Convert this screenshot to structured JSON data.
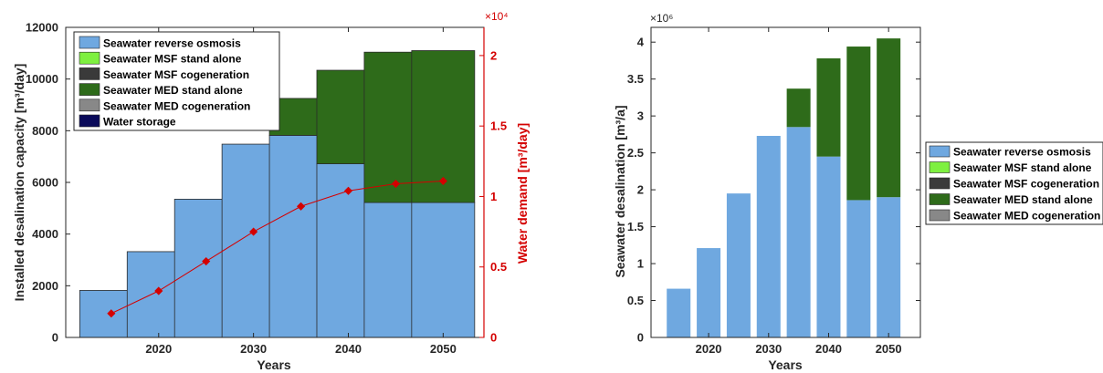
{
  "chart_data": [
    {
      "type": "bar",
      "stacked": true,
      "categories": [
        2015,
        2020,
        2025,
        2030,
        2035,
        2040,
        2045,
        2050
      ],
      "xticks": [
        "2020",
        "2030",
        "2040",
        "2050"
      ],
      "xlabel": "Years",
      "ylabel": "Installed desalination capacity [m³/day]",
      "ylim": [
        0,
        12000
      ],
      "yticks": [
        "0",
        "2000",
        "4000",
        "6000",
        "8000",
        "10000",
        "12000"
      ],
      "y2label": "Water demand [m³/day]",
      "y2lim": [
        0,
        2.2
      ],
      "y2ticks": [
        "0",
        "0.5",
        "1",
        "1.5",
        "2"
      ],
      "y2exponent": "×10⁴",
      "grid": false,
      "legend_position": "top-left",
      "series": [
        {
          "name": "Seawater reverse osmosis",
          "color": "#6fa8e0",
          "values": [
            1820,
            3320,
            5350,
            7480,
            7820,
            6720,
            5220,
            5220
          ]
        },
        {
          "name": "Seawater MSF stand alone",
          "color": "#7ef040",
          "values": [
            0,
            0,
            0,
            0,
            0,
            0,
            0,
            0
          ]
        },
        {
          "name": "Seawater MSF cogeneration",
          "color": "#3a3a3a",
          "values": [
            0,
            0,
            0,
            0,
            0,
            0,
            0,
            0
          ]
        },
        {
          "name": "Seawater MED stand alone",
          "color": "#2e6b1a",
          "values": [
            0,
            0,
            0,
            0,
            1430,
            3620,
            5820,
            5880
          ]
        },
        {
          "name": "Seawater MED cogeneration",
          "color": "#888888",
          "values": [
            0,
            0,
            0,
            0,
            0,
            0,
            0,
            0
          ]
        },
        {
          "name": "Water storage",
          "color": "#0a0a5a",
          "values": [
            0,
            0,
            0,
            0,
            0,
            0,
            0,
            0
          ]
        }
      ],
      "line_series": {
        "name": "Water demand",
        "color": "#d40000",
        "axis": "right",
        "values": [
          0.17,
          0.33,
          0.54,
          0.75,
          0.93,
          1.04,
          1.09,
          1.11
        ]
      }
    },
    {
      "type": "bar",
      "stacked": true,
      "categories": [
        2015,
        2020,
        2025,
        2030,
        2035,
        2040,
        2045,
        2050
      ],
      "xticks": [
        "2020",
        "2030",
        "2040",
        "2050"
      ],
      "xlabel": "Years",
      "ylabel": "Seawater desalination [m³/a]",
      "ylim": [
        0,
        4.2
      ],
      "yticks": [
        "0",
        "0.5",
        "1",
        "1.5",
        "2",
        "2.5",
        "3",
        "3.5",
        "4"
      ],
      "yexponent": "×10⁶",
      "grid": false,
      "legend_position": "outside-right",
      "series": [
        {
          "name": "Seawater reverse osmosis",
          "color": "#6fa8e0",
          "values": [
            0.66,
            1.21,
            1.95,
            2.73,
            2.85,
            2.45,
            1.86,
            1.9
          ]
        },
        {
          "name": "Seawater MSF stand alone",
          "color": "#7ef040",
          "values": [
            0,
            0,
            0,
            0,
            0,
            0,
            0,
            0
          ]
        },
        {
          "name": "Seawater MSF cogeneration",
          "color": "#3a3a3a",
          "values": [
            0,
            0,
            0,
            0,
            0,
            0,
            0,
            0
          ]
        },
        {
          "name": "Seawater MED stand alone",
          "color": "#2e6b1a",
          "values": [
            0,
            0,
            0,
            0,
            0.52,
            1.33,
            2.08,
            2.15
          ]
        },
        {
          "name": "Seawater MED cogeneration",
          "color": "#888888",
          "values": [
            0,
            0,
            0,
            0,
            0,
            0,
            0,
            0
          ]
        }
      ]
    }
  ]
}
